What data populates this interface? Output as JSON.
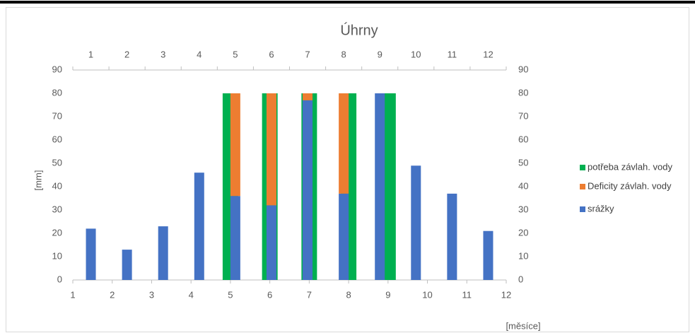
{
  "chart_data": {
    "type": "bar",
    "title": "Úhrny",
    "x_label": "[měsíce]",
    "y_label": "[mm]",
    "categories": [
      "1",
      "2",
      "3",
      "4",
      "5",
      "6",
      "7",
      "8",
      "9",
      "10",
      "11",
      "12"
    ],
    "xlim": [
      1,
      12
    ],
    "xticks": [
      1,
      2,
      3,
      4,
      5,
      6,
      7,
      8,
      9,
      10,
      11,
      12
    ],
    "ylim": [
      0,
      90
    ],
    "yticks": [
      0,
      10,
      20,
      30,
      40,
      50,
      60,
      70,
      80,
      90
    ],
    "y2lim": [
      0,
      90
    ],
    "y2ticks": [
      0,
      10,
      20,
      30,
      40,
      50,
      60,
      70,
      80,
      90
    ],
    "grid": false,
    "legend": "right",
    "series": [
      {
        "name": "potřeba závlah. vody",
        "color": "#00b050",
        "x": [
          5,
          6,
          7,
          8,
          9
        ],
        "values": [
          80,
          80,
          80,
          80,
          80
        ]
      },
      {
        "name": "Deficity závlah. vody",
        "color": "#ed7d31",
        "stacked_on": 2,
        "values": [
          null,
          null,
          null,
          null,
          44,
          48,
          3,
          43,
          null,
          null,
          null,
          null
        ]
      },
      {
        "name": "srážky",
        "color": "#4472c4",
        "values": [
          22,
          13,
          23,
          46,
          36,
          32,
          77,
          37,
          80,
          49,
          37,
          21
        ]
      }
    ]
  }
}
